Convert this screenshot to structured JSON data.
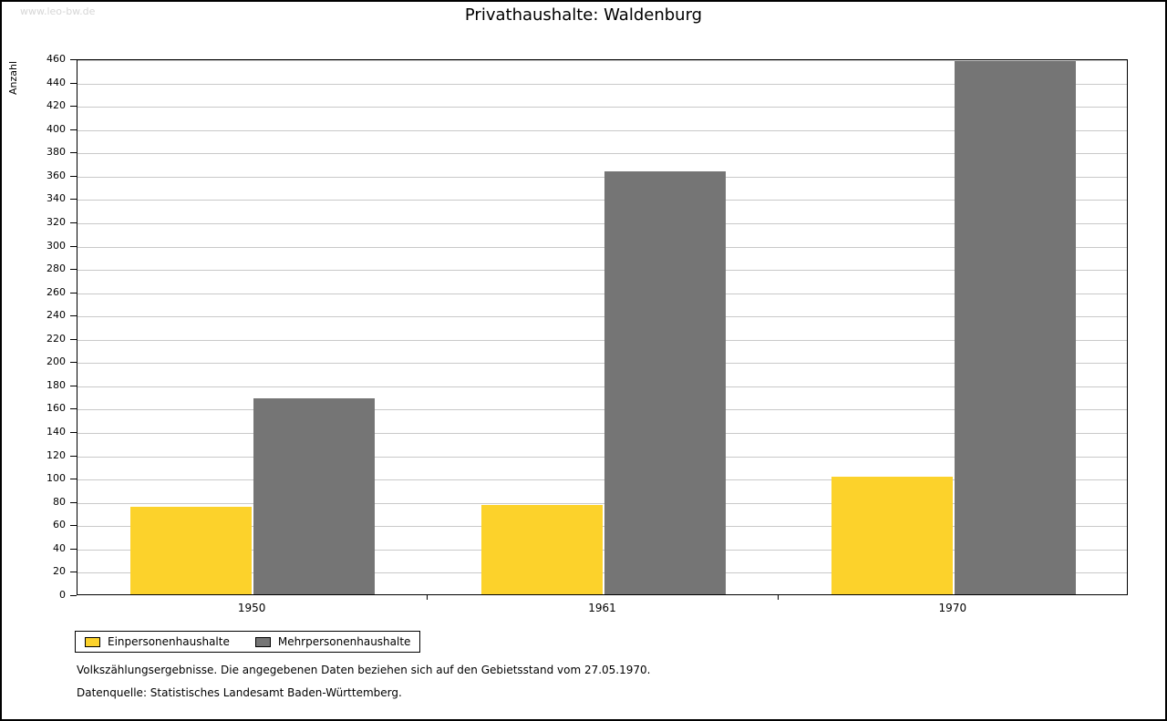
{
  "watermark": "www.leo-bw.de",
  "chart_data": {
    "type": "bar",
    "title": "Privathaushalte: Waldenburg",
    "ylabel": "Anzahl",
    "categories": [
      "1950",
      "1961",
      "1970"
    ],
    "series": [
      {
        "name": "Einpersonenhaushalte",
        "color": "#fcd22b",
        "values": [
          75,
          77,
          101
        ]
      },
      {
        "name": "Mehrpersonenhaushalte",
        "color": "#757575",
        "values": [
          168,
          363,
          458
        ]
      }
    ],
    "ylim": [
      0,
      460
    ],
    "ytick_step": 20,
    "grid": true,
    "legend_position": "bottom-left"
  },
  "footnotes": [
    "Volkszählungsergebnisse. Die angegebenen Daten beziehen sich auf den Gebietsstand vom 27.05.1970.",
    "Datenquelle: Statistisches Landesamt Baden-Württemberg."
  ]
}
